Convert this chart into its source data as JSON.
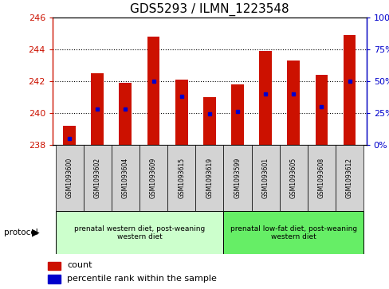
{
  "title": "GDS5293 / ILMN_1223548",
  "samples": [
    "GSM1093600",
    "GSM1093602",
    "GSM1093604",
    "GSM1093609",
    "GSM1093615",
    "GSM1093619",
    "GSM1093599",
    "GSM1093601",
    "GSM1093605",
    "GSM1093608",
    "GSM1093612"
  ],
  "bar_values": [
    239.2,
    242.5,
    241.9,
    244.8,
    242.1,
    241.0,
    241.8,
    243.9,
    243.3,
    242.4,
    244.9
  ],
  "bar_base": 238.0,
  "percentile_ranks": [
    5,
    28,
    28,
    50,
    38,
    24,
    26,
    40,
    40,
    30,
    50
  ],
  "ylim": [
    238,
    246
  ],
  "yticks": [
    238,
    240,
    242,
    244,
    246
  ],
  "right_yticks": [
    0,
    25,
    50,
    75,
    100
  ],
  "bar_color": "#cc1100",
  "dot_color": "#0000cc",
  "title_fontsize": 11,
  "axis_label_color_left": "#cc1100",
  "axis_label_color_right": "#0000cc",
  "group1_label": "prenatal western diet, post-weaning\nwestern diet",
  "group2_label": "prenatal low-fat diet, post-weaning\nwestern diet",
  "group1_indices": [
    0,
    1,
    2,
    3,
    4,
    5
  ],
  "group2_indices": [
    6,
    7,
    8,
    9,
    10
  ],
  "group1_color": "#ccffcc",
  "group2_color": "#66ee66",
  "cell_color": "#d3d3d3",
  "protocol_label": "protocol",
  "legend_count_label": "count",
  "legend_percentile_label": "percentile rank within the sample"
}
